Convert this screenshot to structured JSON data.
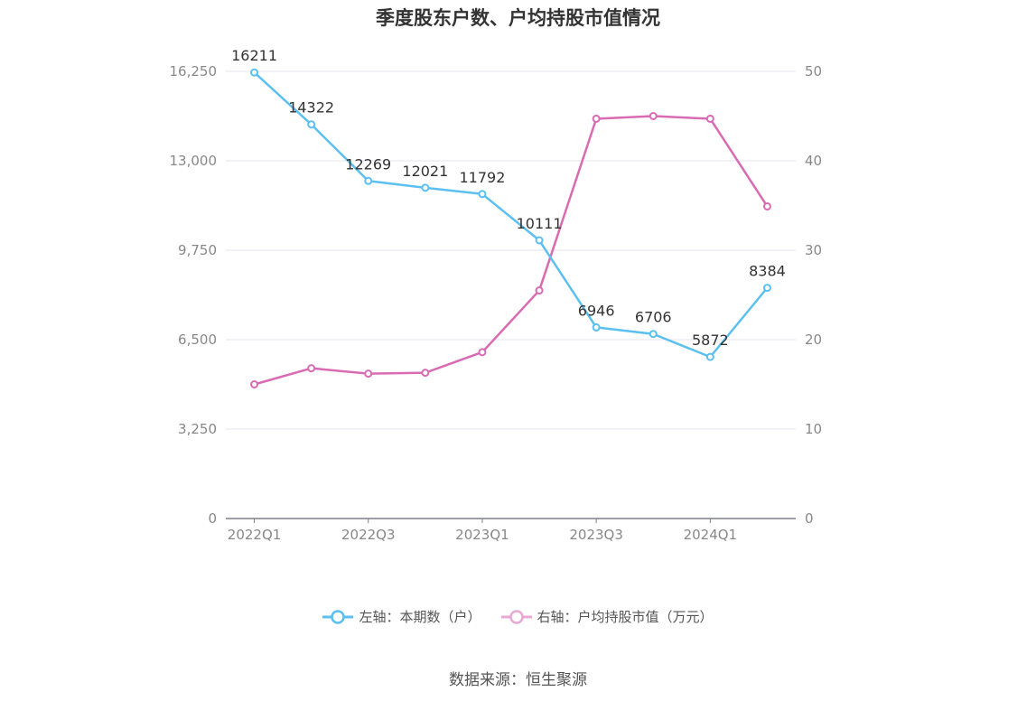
{
  "chart_data": {
    "type": "line",
    "title": "季度股东户数、户均持股市值情况",
    "categories": [
      "2022Q1",
      "2022Q2",
      "2022Q3",
      "2022Q4",
      "2023Q1",
      "2023Q2",
      "2023Q3",
      "2023Q4",
      "2024Q1",
      "2024Q2"
    ],
    "x_tick_labels": [
      "2022Q1",
      "2022Q3",
      "2023Q1",
      "2023Q3",
      "2024Q1"
    ],
    "left_axis": {
      "ticks": [
        "0",
        "3,250",
        "6,500",
        "9,750",
        "13,000",
        "16,250"
      ],
      "ylim": [
        0,
        16250
      ]
    },
    "right_axis": {
      "ticks": [
        "0",
        "10",
        "20",
        "30",
        "40",
        "50"
      ],
      "ylim": [
        0,
        50
      ]
    },
    "series": [
      {
        "name": "左轴：本期数（户）",
        "axis": "left",
        "color": "#5bc0f0",
        "values": [
          16211,
          14322,
          12269,
          12021,
          11792,
          10111,
          6946,
          6706,
          5872,
          8384
        ],
        "labels": [
          "16211",
          "14322",
          "12269",
          "12021",
          "11792",
          "10111",
          "6946",
          "6706",
          "5872",
          "8384"
        ]
      },
      {
        "name": "右轴：户均持股市值（万元）",
        "axis": "right",
        "color": "#d96bb3",
        "values": [
          15.0,
          16.8,
          16.2,
          16.3,
          18.6,
          25.5,
          44.7,
          45.0,
          44.7,
          34.9
        ]
      }
    ],
    "legend_position": "bottom",
    "grid": true
  },
  "footer": {
    "source": "数据来源：恒生聚源"
  }
}
